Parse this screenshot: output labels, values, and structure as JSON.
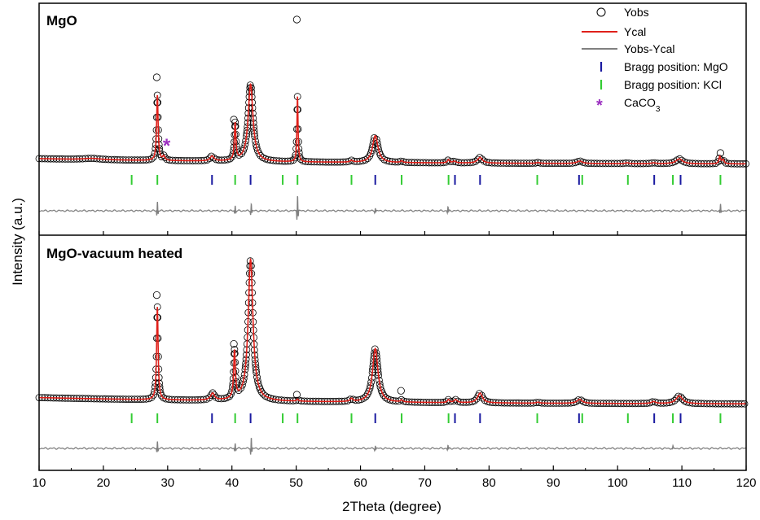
{
  "chart_data": {
    "type": "line",
    "xlabel": "2Theta (degree)",
    "ylabel": "Intensity (a.u.)",
    "xlim": [
      10,
      120
    ],
    "xticks": [
      10,
      20,
      30,
      40,
      50,
      60,
      70,
      80,
      90,
      100,
      110,
      120
    ],
    "xtick_labels": [
      "10",
      "20",
      "30",
      "40",
      "50",
      "60",
      "70",
      "80",
      "90",
      "100",
      "110",
      "120"
    ],
    "legend": {
      "position": "top-right",
      "entries": [
        {
          "key": "yobs",
          "label": "Yobs",
          "marker": "open-circle",
          "color": "#000000"
        },
        {
          "key": "ycal",
          "label": "Ycal",
          "marker": "line",
          "color": "#e0201a"
        },
        {
          "key": "diff",
          "label": "Yobs-Ycal",
          "marker": "line",
          "color": "#808080"
        },
        {
          "key": "bragg_mgo",
          "label": "Bragg position: MgO",
          "marker": "tick",
          "color": "#1a1aa0"
        },
        {
          "key": "bragg_kcl",
          "label": "Bragg position: KCl",
          "marker": "tick",
          "color": "#33cc33"
        },
        {
          "key": "caco3",
          "label": "CaCO",
          "sub": "3",
          "marker": "asterisk",
          "color": "#9b30c0"
        }
      ]
    },
    "panels": [
      {
        "label": "MgO",
        "background": 0.07,
        "peaks": [
          {
            "x": 18.2,
            "h": 0.015,
            "w": 1.6
          },
          {
            "x": 28.4,
            "h": 0.8,
            "w": 0.14
          },
          {
            "x": 29.4,
            "h": 0.05,
            "w": 0.2
          },
          {
            "x": 36.9,
            "h": 0.06,
            "w": 0.35
          },
          {
            "x": 40.5,
            "h": 0.45,
            "w": 0.14
          },
          {
            "x": 42.9,
            "h": 0.95,
            "w": 0.45
          },
          {
            "x": 50.2,
            "h": 0.8,
            "w": 0.1
          },
          {
            "x": 58.6,
            "h": 0.02,
            "w": 0.25
          },
          {
            "x": 62.3,
            "h": 0.33,
            "w": 0.5
          },
          {
            "x": 66.4,
            "h": 0.02,
            "w": 0.2
          },
          {
            "x": 73.7,
            "h": 0.04,
            "w": 0.2
          },
          {
            "x": 74.6,
            "h": 0.02,
            "w": 0.3
          },
          {
            "x": 78.6,
            "h": 0.07,
            "w": 0.45
          },
          {
            "x": 87.6,
            "h": 0.01,
            "w": 0.3
          },
          {
            "x": 94.1,
            "h": 0.03,
            "w": 0.5
          },
          {
            "x": 101.5,
            "h": 0.01,
            "w": 0.3
          },
          {
            "x": 105.6,
            "h": 0.01,
            "w": 0.4
          },
          {
            "x": 109.6,
            "h": 0.06,
            "w": 0.6
          },
          {
            "x": 115.9,
            "h": 0.09,
            "w": 0.15
          },
          {
            "x": 116.4,
            "h": 0.05,
            "w": 0.2
          }
        ],
        "outlier_points": [
          {
            "x": 28.3,
            "y": 1.07
          },
          {
            "x": 40.3,
            "y": 0.55
          },
          {
            "x": 50.1,
            "y": 1.78
          },
          {
            "x": 116.0,
            "y": 0.14
          }
        ],
        "difference_spikes": [
          {
            "x": 28.4,
            "amp": 0.09
          },
          {
            "x": 40.5,
            "amp": 0.05
          },
          {
            "x": 43.0,
            "amp": 0.07
          },
          {
            "x": 50.2,
            "amp": 0.16
          },
          {
            "x": 62.3,
            "amp": 0.03
          },
          {
            "x": 73.6,
            "amp": 0.04
          },
          {
            "x": 116.0,
            "amp": 0.06
          }
        ],
        "caco3_marker": {
          "x": 30.0
        }
      },
      {
        "label": "MgO-vacuum heated",
        "background": 0.07,
        "peaks": [
          {
            "x": 28.4,
            "h": 0.95,
            "w": 0.14
          },
          {
            "x": 37.0,
            "h": 0.07,
            "w": 0.35
          },
          {
            "x": 40.4,
            "h": 0.48,
            "w": 0.16
          },
          {
            "x": 42.9,
            "h": 1.45,
            "w": 0.45
          },
          {
            "x": 50.2,
            "h": 0.02,
            "w": 0.15
          },
          {
            "x": 58.6,
            "h": 0.03,
            "w": 0.25
          },
          {
            "x": 62.3,
            "h": 0.55,
            "w": 0.5
          },
          {
            "x": 66.4,
            "h": 0.02,
            "w": 0.2
          },
          {
            "x": 73.7,
            "h": 0.03,
            "w": 0.2
          },
          {
            "x": 74.8,
            "h": 0.03,
            "w": 0.3
          },
          {
            "x": 78.6,
            "h": 0.1,
            "w": 0.45
          },
          {
            "x": 87.6,
            "h": 0.01,
            "w": 0.3
          },
          {
            "x": 94.1,
            "h": 0.04,
            "w": 0.5
          },
          {
            "x": 105.6,
            "h": 0.02,
            "w": 0.4
          },
          {
            "x": 109.6,
            "h": 0.08,
            "w": 0.6
          }
        ],
        "outlier_points": [
          {
            "x": 28.3,
            "y": 1.12
          },
          {
            "x": 40.3,
            "y": 0.62
          },
          {
            "x": 50.1,
            "y": 0.1
          },
          {
            "x": 66.3,
            "y": 0.14
          }
        ],
        "difference_spikes": [
          {
            "x": 28.4,
            "amp": 0.07
          },
          {
            "x": 40.5,
            "amp": 0.05
          },
          {
            "x": 43.0,
            "amp": 0.11
          },
          {
            "x": 62.3,
            "amp": 0.03
          },
          {
            "x": 73.6,
            "amp": 0.03
          },
          {
            "x": 108.6,
            "amp": 0.02
          }
        ]
      }
    ],
    "bragg_positions": {
      "MgO": [
        36.9,
        42.9,
        62.3,
        74.7,
        78.6,
        94.0,
        105.7,
        109.8
      ],
      "KCl": [
        24.4,
        28.4,
        40.5,
        47.9,
        50.2,
        58.6,
        66.4,
        73.7,
        87.5,
        94.5,
        101.6,
        108.6,
        116.0
      ]
    }
  }
}
